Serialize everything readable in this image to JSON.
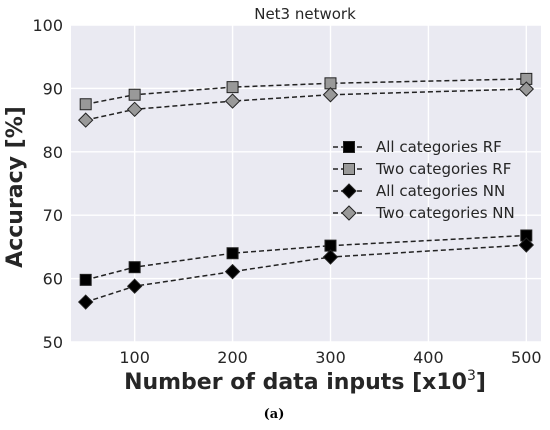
{
  "chart_data": {
    "type": "line",
    "title": "Net3 network",
    "xlabel": "Number of data inputs [x10",
    "xlabel_superscript": "3",
    "xlabel_suffix": "]",
    "ylabel": "Accuracy [%]",
    "x": [
      50,
      100,
      200,
      300,
      500
    ],
    "xlim": [
      35,
      515
    ],
    "ylim": [
      50,
      100
    ],
    "xticks": [
      100,
      200,
      300,
      400,
      500
    ],
    "yticks": [
      50,
      60,
      70,
      80,
      90,
      100
    ],
    "grid": true,
    "legend_position": "center-right",
    "series": [
      {
        "name": "All categories RF",
        "marker": "square",
        "color": "#000000",
        "values": [
          59.8,
          61.8,
          64.0,
          65.2,
          66.8
        ]
      },
      {
        "name": "Two categories RF",
        "marker": "square",
        "color": "#999999",
        "values": [
          87.5,
          89.0,
          90.2,
          90.8,
          91.5
        ]
      },
      {
        "name": "All categories NN",
        "marker": "diamond",
        "color": "#000000",
        "values": [
          56.3,
          58.8,
          61.1,
          63.4,
          65.3
        ]
      },
      {
        "name": "Two categories NN",
        "marker": "diamond",
        "color": "#999999",
        "values": [
          85.0,
          86.7,
          88.0,
          89.0,
          89.9
        ]
      }
    ],
    "plot_background": "#eaeaf2"
  },
  "caption": "(a)"
}
